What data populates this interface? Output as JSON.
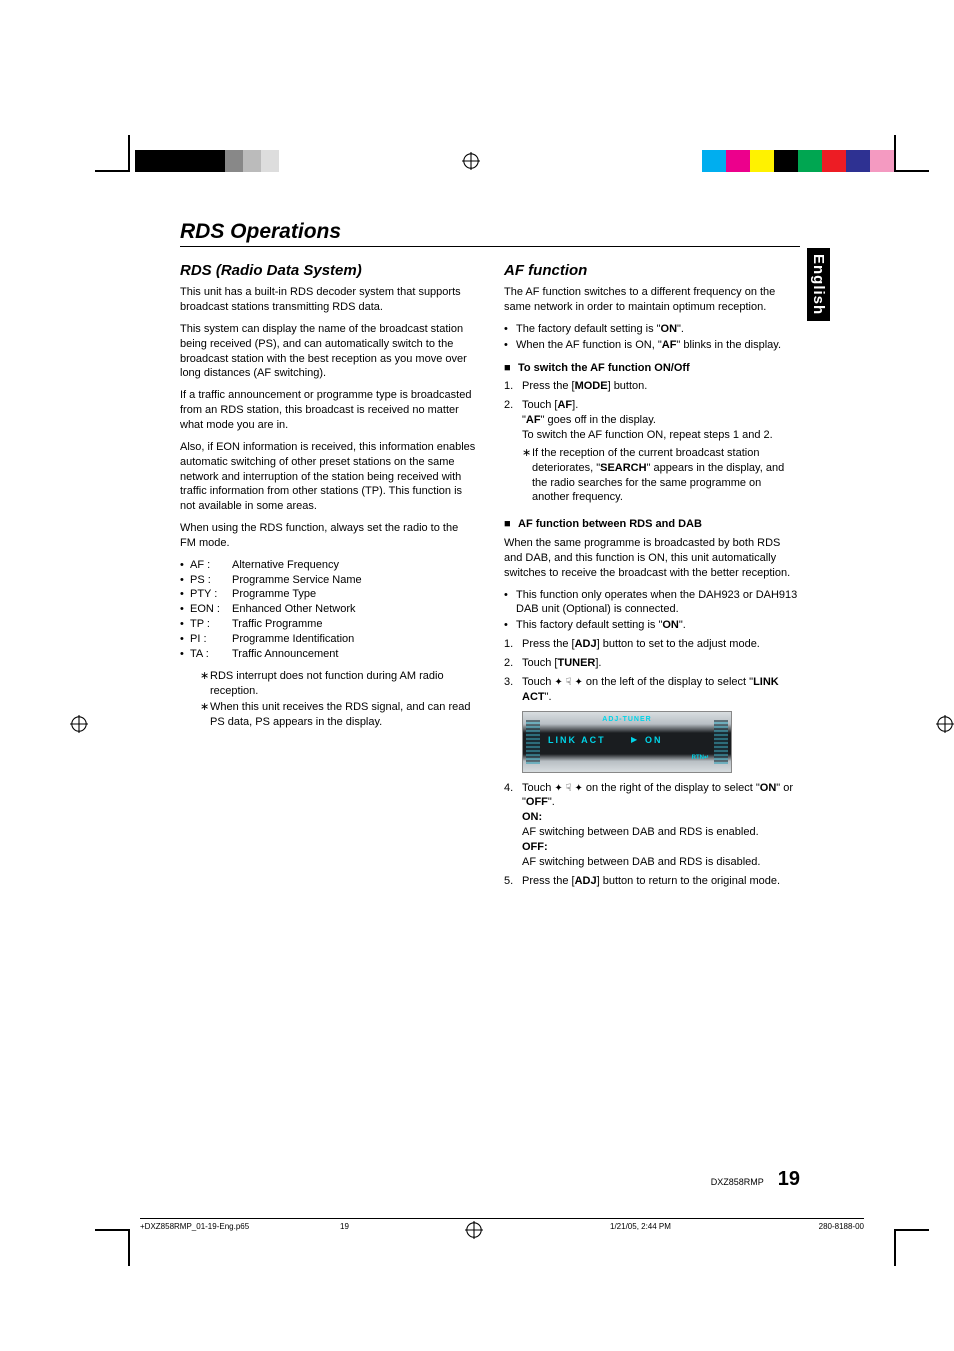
{
  "print_marks": {
    "left_colors": [
      "#000000",
      "#000000",
      "#000000",
      "#000000",
      "#000000",
      "#888888",
      "#bbbbbb",
      "#dddddd"
    ],
    "left_widths": [
      18,
      18,
      18,
      18,
      18,
      18,
      18,
      18
    ],
    "right_colors": [
      "#00aeef",
      "#ec008c",
      "#fff200",
      "#000000",
      "#00a651",
      "#ed1c24",
      "#2e3192",
      "#f49ac1"
    ],
    "right_widths": [
      24,
      24,
      24,
      24,
      24,
      24,
      24,
      24
    ]
  },
  "language_tab": "English",
  "main_title": "RDS Operations",
  "left_col": {
    "title": "RDS (Radio Data System)",
    "p1": "This unit has a built-in RDS decoder system that supports broadcast stations transmitting RDS data.",
    "p2": "This system can display the name of the broadcast station being received (PS), and can automatically switch to the broadcast station with the best reception as you move over long distances (AF switching).",
    "p3": "If a traffic announcement or programme type is broadcasted from an RDS station, this broadcast is received no matter what mode you are in.",
    "p4": "Also, if EON information is received, this information enables automatic switching of other preset stations on the same network and interruption of the station being received with traffic information from other stations (TP). This function is not available in some areas.",
    "p5": "When using the RDS function, always set the radio to the FM mode.",
    "abbrs": [
      {
        "k": "AF :",
        "v": "Alternative Frequency"
      },
      {
        "k": "PS :",
        "v": "Programme Service Name"
      },
      {
        "k": "PTY :",
        "v": "Programme Type"
      },
      {
        "k": "EON :",
        "v": "Enhanced Other Network"
      },
      {
        "k": "TP :",
        "v": "Traffic Programme"
      },
      {
        "k": "PI :",
        "v": "Programme Identification"
      },
      {
        "k": "TA :",
        "v": "Traffic Announcement"
      }
    ],
    "notes": [
      "RDS interrupt does not function during AM radio reception.",
      "When this unit receives the RDS signal, and can read PS data, PS appears in the display."
    ]
  },
  "right_col": {
    "title": "AF function",
    "p1": "The AF function switches to a different frequency on the same network in order to maintain optimum reception.",
    "b1a": "The factory default setting is \"",
    "b1b": "ON",
    "b1c": "\".",
    "b2a": "When the AF function is ON, \"",
    "b2b": "AF",
    "b2c": "\" blinks in the display.",
    "sub1": "To switch the AF function ON/Off",
    "s1_1a": "Press the [",
    "s1_1b": "MODE",
    "s1_1c": "] button.",
    "s1_2a": "Touch [",
    "s1_2b": "AF",
    "s1_2c": "].",
    "s1_2d": "\"",
    "s1_2e": "AF",
    "s1_2f": "\" goes off in the display.",
    "s1_2g": "To switch the AF function ON, repeat steps 1 and 2.",
    "s1_note_a": "If the reception of the current broadcast station deteriorates, \"",
    "s1_note_b": "SEARCH",
    "s1_note_c": "\" appears in the display, and the radio searches for the same programme on another frequency.",
    "sub2": "AF function between RDS and DAB",
    "p2": "When the same programme is broadcasted by both RDS and DAB, and this function is ON, this unit automatically switches to receive the broadcast with the better reception.",
    "b3": "This function only operates when the DAH923 or DAH913 DAB unit (Optional) is connected.",
    "b4a": "This factory default setting is \"",
    "b4b": "ON",
    "b4c": "\".",
    "n1a": "Press the [",
    "n1b": "ADJ",
    "n1c": "] button to set to the adjust mode.",
    "n2a": "Touch [",
    "n2b": "TUNER",
    "n2c": "].",
    "n3a": "Touch ",
    "n3b": " on the left of the display to select \"",
    "n3c": "LINK ACT",
    "n3d": "\".",
    "display": {
      "title": "ADJ-TUNER",
      "row": "LINK ACT",
      "val": "ON",
      "rtn": "RTN"
    },
    "n4a": "Touch ",
    "n4b": " on the right of the display to select \"",
    "n4c": "ON",
    "n4d": "\" or \"",
    "n4e": "OFF",
    "n4f": "\".",
    "on_label": "ON:",
    "on_text": "AF switching between DAB and RDS is enabled.",
    "off_label": "OFF:",
    "off_text": "AF switching between DAB and RDS is disabled.",
    "n5a": "Press the [",
    "n5b": "ADJ",
    "n5c": "] button to return to the original mode."
  },
  "footer": {
    "model": "DXZ858RMP",
    "page": "19"
  },
  "meta": {
    "file": "+DXZ858RMP_01-19-Eng.p65",
    "pg": "19",
    "date": "1/21/05, 2:44 PM",
    "code": "280-8188-00"
  }
}
